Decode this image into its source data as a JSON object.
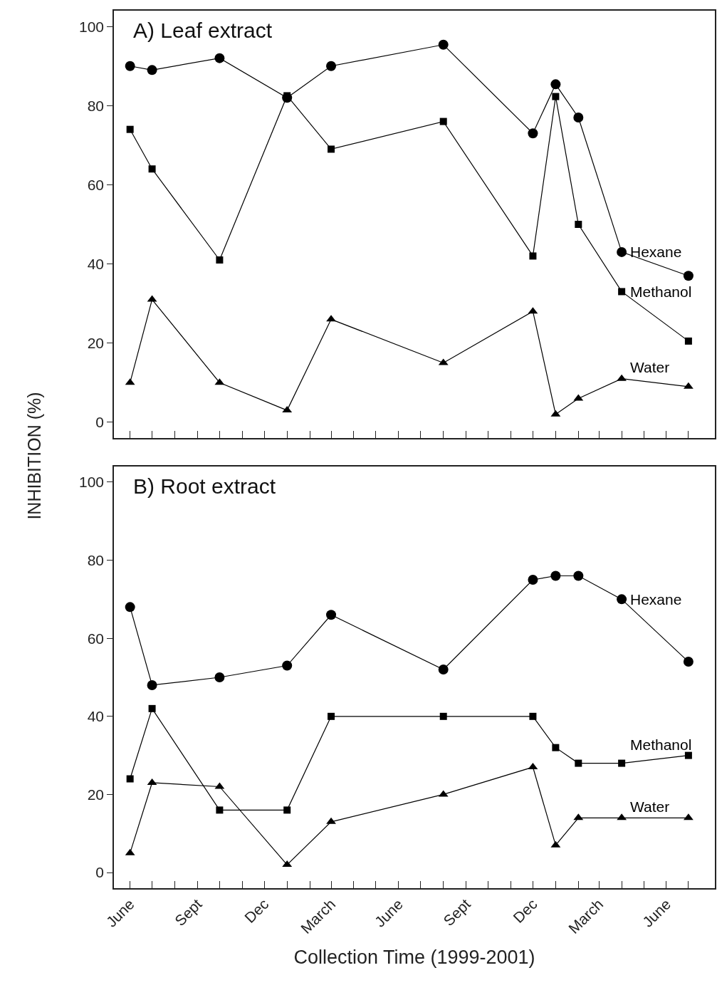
{
  "chart_data": [
    {
      "type": "line",
      "title": "A) Leaf extract",
      "ylabel": "INHIBITION (%)",
      "tick_labels": "y",
      "grid": false,
      "legend": false,
      "line_style": "solid",
      "x": [
        "1999-06",
        "1999-07",
        "1999-10",
        "2000-01",
        "2000-03",
        "2000-08",
        "2000-12",
        "2001-01",
        "2001-02",
        "2001-04",
        "2001-07"
      ],
      "series": [
        {
          "name": "Hexane",
          "color": "#000000",
          "marker": "circle",
          "values": [
            90,
            89,
            92,
            82,
            90,
            95.4,
            73,
            85.4,
            77,
            43,
            37
          ]
        },
        {
          "name": "Methanol",
          "color": "#000000",
          "marker": "square",
          "values": [
            74,
            64,
            41,
            82.5,
            69,
            76,
            42,
            82.3,
            50,
            33,
            20.5
          ]
        },
        {
          "name": "Water",
          "color": "#000000",
          "marker": "triangle",
          "values": [
            10,
            31,
            10,
            3,
            26,
            15,
            28,
            2,
            6,
            11,
            9
          ]
        }
      ],
      "xlim": [
        "1999-05-10",
        "2001-08-06"
      ],
      "ylim": [
        -4,
        104
      ],
      "yticks": [
        0,
        20,
        40,
        60,
        80,
        100
      ],
      "xticks": [
        {
          "value": "1999-06",
          "label": null
        },
        {
          "value": "1999-07",
          "label": null
        },
        {
          "value": "1999-08",
          "label": null
        },
        {
          "value": "1999-09",
          "label": null
        },
        {
          "value": "1999-10",
          "label": null
        },
        {
          "value": "1999-11",
          "label": null
        },
        {
          "value": "1999-12",
          "label": null
        },
        {
          "value": "2000-01",
          "label": null
        },
        {
          "value": "2000-02",
          "label": null
        },
        {
          "value": "2000-03",
          "label": null
        },
        {
          "value": "2000-04",
          "label": null
        },
        {
          "value": "2000-05",
          "label": null
        },
        {
          "value": "2000-06",
          "label": null
        },
        {
          "value": "2000-07",
          "label": null
        },
        {
          "value": "2000-08",
          "label": null
        },
        {
          "value": "2000-09",
          "label": null
        },
        {
          "value": "2000-10",
          "label": null
        },
        {
          "value": "2000-11",
          "label": null
        },
        {
          "value": "2000-12",
          "label": null
        },
        {
          "value": "2001-01",
          "label": null
        },
        {
          "value": "2001-02",
          "label": null
        },
        {
          "value": "2001-03",
          "label": null
        },
        {
          "value": "2001-04",
          "label": null
        },
        {
          "value": "2001-05",
          "label": null
        },
        {
          "value": "2001-06",
          "label": null
        },
        {
          "value": "2001-07",
          "label": null
        }
      ]
    },
    {
      "type": "line",
      "title": "B) Root extract",
      "xlabel": "Collection Time (1999-2001)",
      "grid": false,
      "legend": false,
      "line_style": "solid",
      "x": [
        "1999-06",
        "1999-07",
        "1999-10",
        "2000-01",
        "2000-03",
        "2000-08",
        "2000-12",
        "2001-01",
        "2001-02",
        "2001-04",
        "2001-07"
      ],
      "series": [
        {
          "name": "Hexane",
          "color": "#000000",
          "marker": "circle",
          "values": [
            68,
            48,
            50,
            53,
            66,
            52,
            75,
            76,
            76,
            70,
            54
          ]
        },
        {
          "name": "Methanol",
          "color": "#000000",
          "marker": "square",
          "values": [
            24,
            42,
            16,
            16,
            40,
            40,
            40,
            32,
            28,
            28,
            30
          ]
        },
        {
          "name": "Water",
          "color": "#000000",
          "marker": "triangle",
          "values": [
            5,
            23,
            22,
            2,
            13,
            20,
            27,
            7,
            14,
            14,
            14
          ]
        }
      ],
      "xlim": [
        "1999-05-10",
        "2001-08-06"
      ],
      "ylim": [
        -4,
        104
      ],
      "yticks": [
        0,
        20,
        40,
        60,
        80,
        100
      ],
      "xticks": [
        {
          "value": "1999-06",
          "label": "June"
        },
        {
          "value": "1999-07",
          "label": null
        },
        {
          "value": "1999-08",
          "label": null
        },
        {
          "value": "1999-09",
          "label": "Sept"
        },
        {
          "value": "1999-10",
          "label": null
        },
        {
          "value": "1999-11",
          "label": null
        },
        {
          "value": "1999-12",
          "label": "Dec"
        },
        {
          "value": "2000-01",
          "label": null
        },
        {
          "value": "2000-02",
          "label": null
        },
        {
          "value": "2000-03",
          "label": "March"
        },
        {
          "value": "2000-04",
          "label": null
        },
        {
          "value": "2000-05",
          "label": null
        },
        {
          "value": "2000-06",
          "label": "June"
        },
        {
          "value": "2000-07",
          "label": null
        },
        {
          "value": "2000-08",
          "label": null
        },
        {
          "value": "2000-09",
          "label": "Sept"
        },
        {
          "value": "2000-10",
          "label": null
        },
        {
          "value": "2000-11",
          "label": null
        },
        {
          "value": "2000-12",
          "label": "Dec"
        },
        {
          "value": "2001-01",
          "label": null
        },
        {
          "value": "2001-02",
          "label": null
        },
        {
          "value": "2001-03",
          "label": "March"
        },
        {
          "value": "2001-04",
          "label": null
        },
        {
          "value": "2001-05",
          "label": null
        },
        {
          "value": "2001-06",
          "label": "June"
        },
        {
          "value": "2001-07",
          "label": null
        }
      ]
    }
  ]
}
